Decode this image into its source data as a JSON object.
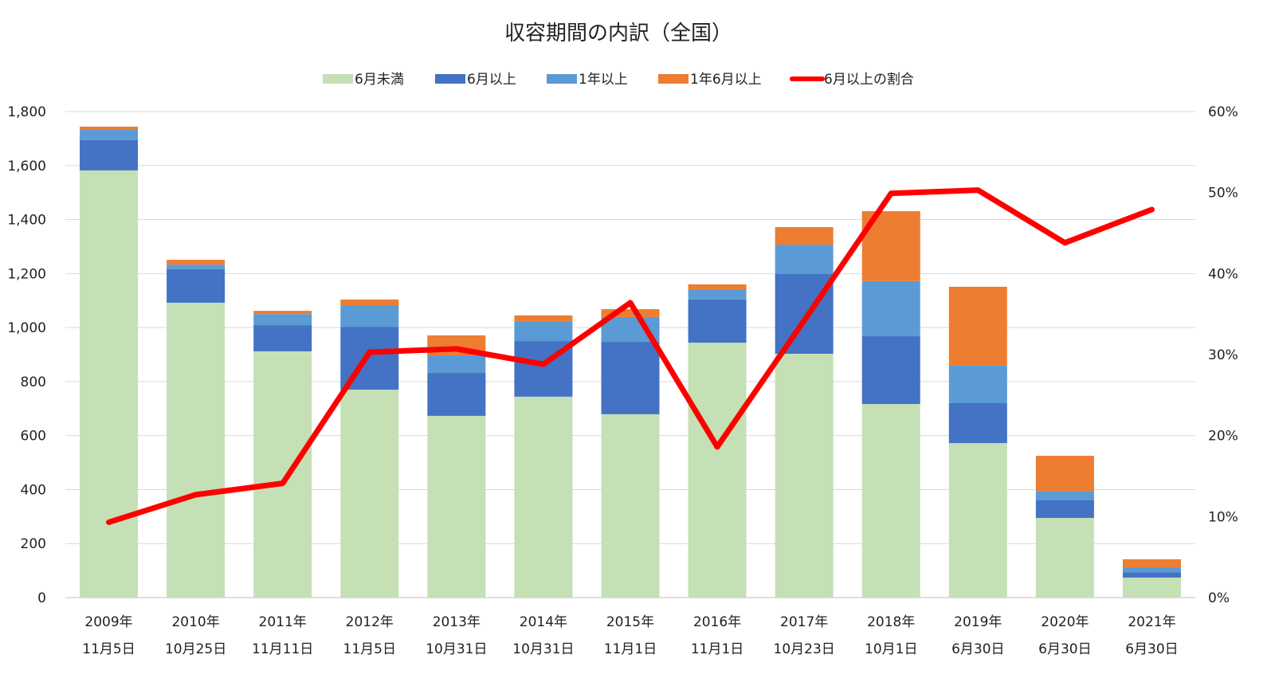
{
  "chart_data": {
    "type": "bar",
    "stacked": true,
    "title": "収容期間の内訳（全国）",
    "categories": [
      [
        "2009年",
        "11月5日"
      ],
      [
        "2010年",
        "10月25日"
      ],
      [
        "2011年",
        "11月11日"
      ],
      [
        "2012年",
        "11月5日"
      ],
      [
        "2013年",
        "10月31日"
      ],
      [
        "2014年",
        "10月31日"
      ],
      [
        "2015年",
        "11月1日"
      ],
      [
        "2016年",
        "11月1日"
      ],
      [
        "2017年",
        "10月23日"
      ],
      [
        "2018年",
        "10月1日"
      ],
      [
        "2019年",
        "6月30日"
      ],
      [
        "2020年",
        "6月30日"
      ],
      [
        "2021年",
        "6月30日"
      ]
    ],
    "series": [
      {
        "name": "6月未満",
        "color": "#c5e0b4",
        "values": [
          1582,
          1092,
          912,
          770,
          673,
          744,
          679,
          944,
          903,
          717,
          572,
          295,
          74
        ]
      },
      {
        "name": "6月以上",
        "color": "#4472c4",
        "values": [
          112,
          124,
          97,
          233,
          159,
          206,
          268,
          160,
          295,
          251,
          148,
          65,
          20
        ]
      },
      {
        "name": "1年以上",
        "color": "#5b9bd5",
        "values": [
          38,
          17,
          41,
          80,
          65,
          71,
          92,
          35,
          109,
          204,
          139,
          35,
          18
        ]
      },
      {
        "name": "1年6月以上",
        "color": "#ed7d31",
        "values": [
          12,
          18,
          12,
          21,
          74,
          24,
          29,
          21,
          65,
          259,
          292,
          130,
          30
        ]
      }
    ],
    "line_series": {
      "name": "6月以上の割合",
      "color": "#ff0000",
      "axis": "right",
      "unit": "%",
      "values": [
        9.3,
        12.7,
        14.1,
        30.3,
        30.7,
        28.8,
        36.4,
        18.6,
        34.2,
        49.9,
        50.3,
        43.8,
        47.9
      ]
    },
    "ylim": [
      0,
      1800
    ],
    "yticks": [
      "0",
      "200",
      "400",
      "600",
      "800",
      "1,000",
      "1,200",
      "1,400",
      "1,600",
      "1,800"
    ],
    "y2lim": [
      0,
      60
    ],
    "y2ticks": [
      "0%",
      "10%",
      "20%",
      "30%",
      "40%",
      "50%",
      "60%"
    ],
    "grid": true,
    "legend_position": "top"
  }
}
